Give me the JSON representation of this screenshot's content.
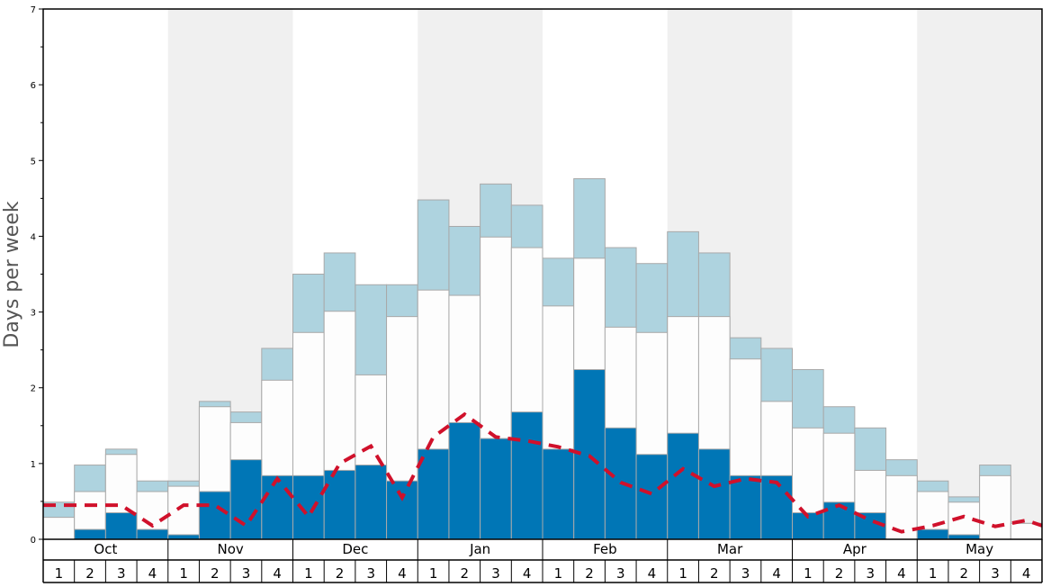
{
  "chart_data": {
    "type": "bar",
    "ylabel": "Days per week",
    "ylim": [
      0,
      7
    ],
    "yticks": [
      "0",
      "1",
      "2",
      "3",
      "4",
      "5",
      "6",
      "7"
    ],
    "months": [
      "Oct",
      "Nov",
      "Dec",
      "Jan",
      "Feb",
      "Mar",
      "Apr",
      "May"
    ],
    "weeks": [
      "1",
      "2",
      "3",
      "4"
    ],
    "shaded_months": [
      "Nov",
      "Jan",
      "Mar",
      "May"
    ],
    "colors": {
      "dark": "#0076b6",
      "white": "#fdfdfd",
      "light": "#aed3df",
      "line": "#d0112b",
      "shade": "#f0f0f0",
      "bar_edge": "#a9a9a9"
    },
    "series": [
      {
        "values": [
          0,
          0.13,
          0.35,
          0.13,
          0.06,
          0.63,
          1.05,
          0.84,
          0.84,
          0.91,
          0.98,
          0.77,
          1.19,
          1.54,
          1.33,
          1.68,
          1.19,
          2.24,
          1.47,
          1.12,
          1.4,
          1.19,
          0.84,
          0.84,
          0.35,
          0.49,
          0.35,
          0,
          0.13,
          0.06,
          0,
          0
        ]
      },
      {
        "values": [
          0.29,
          0.63,
          1.12,
          0.63,
          0.7,
          1.75,
          1.54,
          2.1,
          2.73,
          3.01,
          2.17,
          2.94,
          3.29,
          3.22,
          3.99,
          3.85,
          3.08,
          3.71,
          2.8,
          2.73,
          2.94,
          2.94,
          2.38,
          1.82,
          1.47,
          1.4,
          0.91,
          0.84,
          0.63,
          0.49,
          0.84,
          0.21
        ]
      },
      {
        "values": [
          0.49,
          0.98,
          1.19,
          0.77,
          0.77,
          1.82,
          1.68,
          2.52,
          3.5,
          3.78,
          3.36,
          3.36,
          4.48,
          4.13,
          4.69,
          4.41,
          3.71,
          4.76,
          3.85,
          3.64,
          4.06,
          3.78,
          2.66,
          2.52,
          2.24,
          1.75,
          1.47,
          1.05,
          0.77,
          0.56,
          0.98,
          0.21
        ]
      },
      {
        "values": [
          0.45,
          0.45,
          0.45,
          0.18,
          0.45,
          0.45,
          0.18,
          0.8,
          0.3,
          1.0,
          1.23,
          0.55,
          1.35,
          1.65,
          1.35,
          1.3,
          1.22,
          1.1,
          0.75,
          0.6,
          0.93,
          0.7,
          0.8,
          0.75,
          0.3,
          0.45,
          0.25,
          0.1,
          0.18,
          0.3,
          0.17,
          0.25
        ]
      }
    ]
  }
}
